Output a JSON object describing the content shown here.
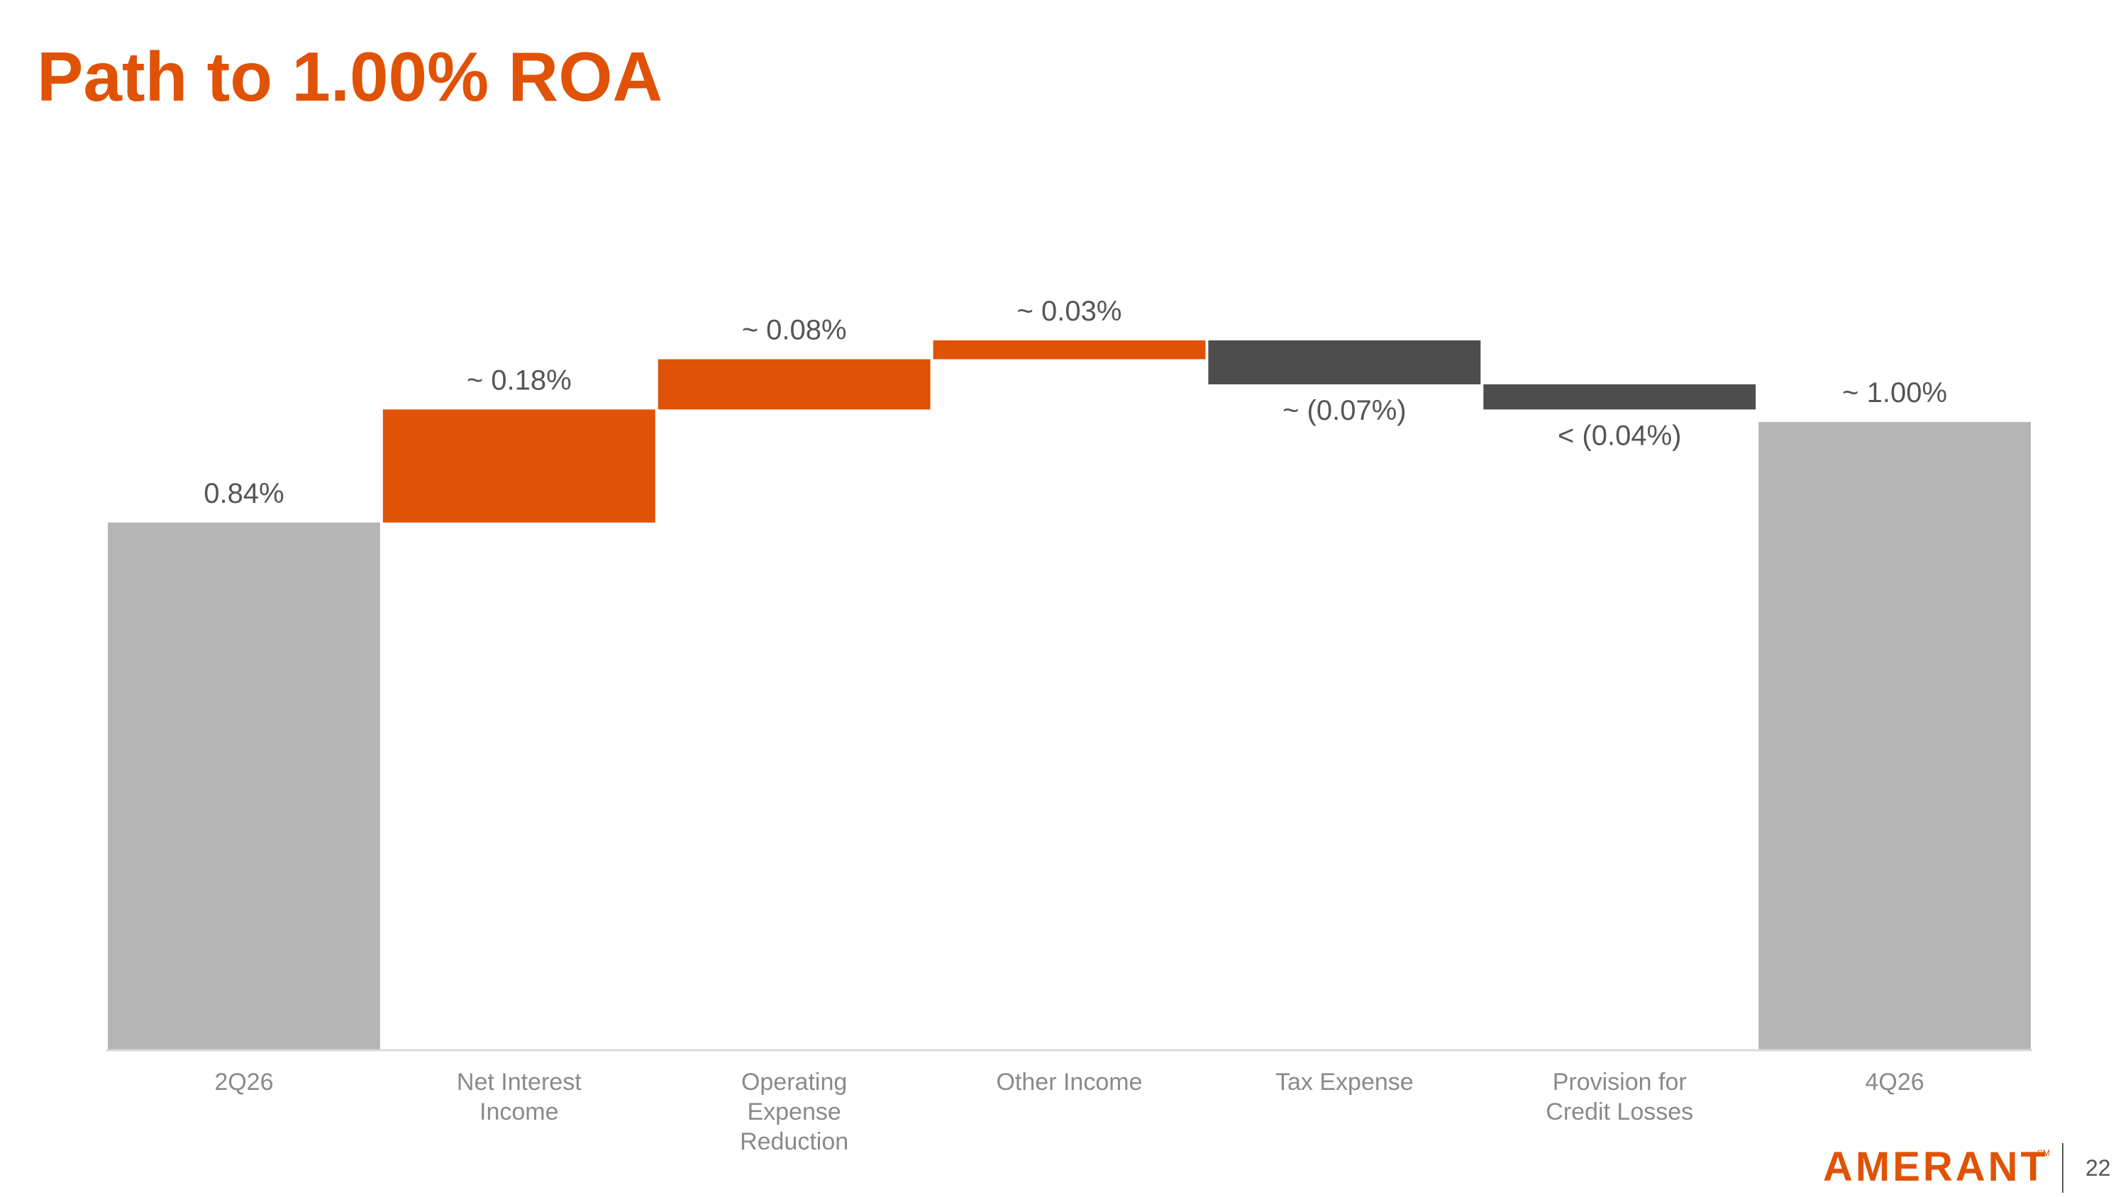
{
  "chart_data": {
    "type": "waterfall",
    "title": "Path to 1.00% ROA",
    "categories": [
      "2Q26",
      "Net Interest Income",
      "Operating Expense Reduction",
      "Other Income",
      "Tax Expense",
      "Provision for Credit Losses",
      "4Q26"
    ],
    "values": [
      0.84,
      0.18,
      0.08,
      0.03,
      -0.07,
      -0.04,
      1.0
    ],
    "value_labels": [
      "0.84%",
      "~ 0.18%",
      "~ 0.08%",
      "~ 0.03%",
      "~ (0.07%)",
      "< (0.04%)",
      "~ 1.00%"
    ],
    "measures": [
      "total",
      "relative",
      "relative",
      "relative",
      "relative",
      "relative",
      "total"
    ],
    "colors": {
      "total": "#b5b5b5",
      "increase": "#e05206",
      "decrease": "#4d4d4d"
    }
  },
  "footer": {
    "logo": "AMERANT",
    "logo_mark": "SM",
    "page": "22"
  }
}
